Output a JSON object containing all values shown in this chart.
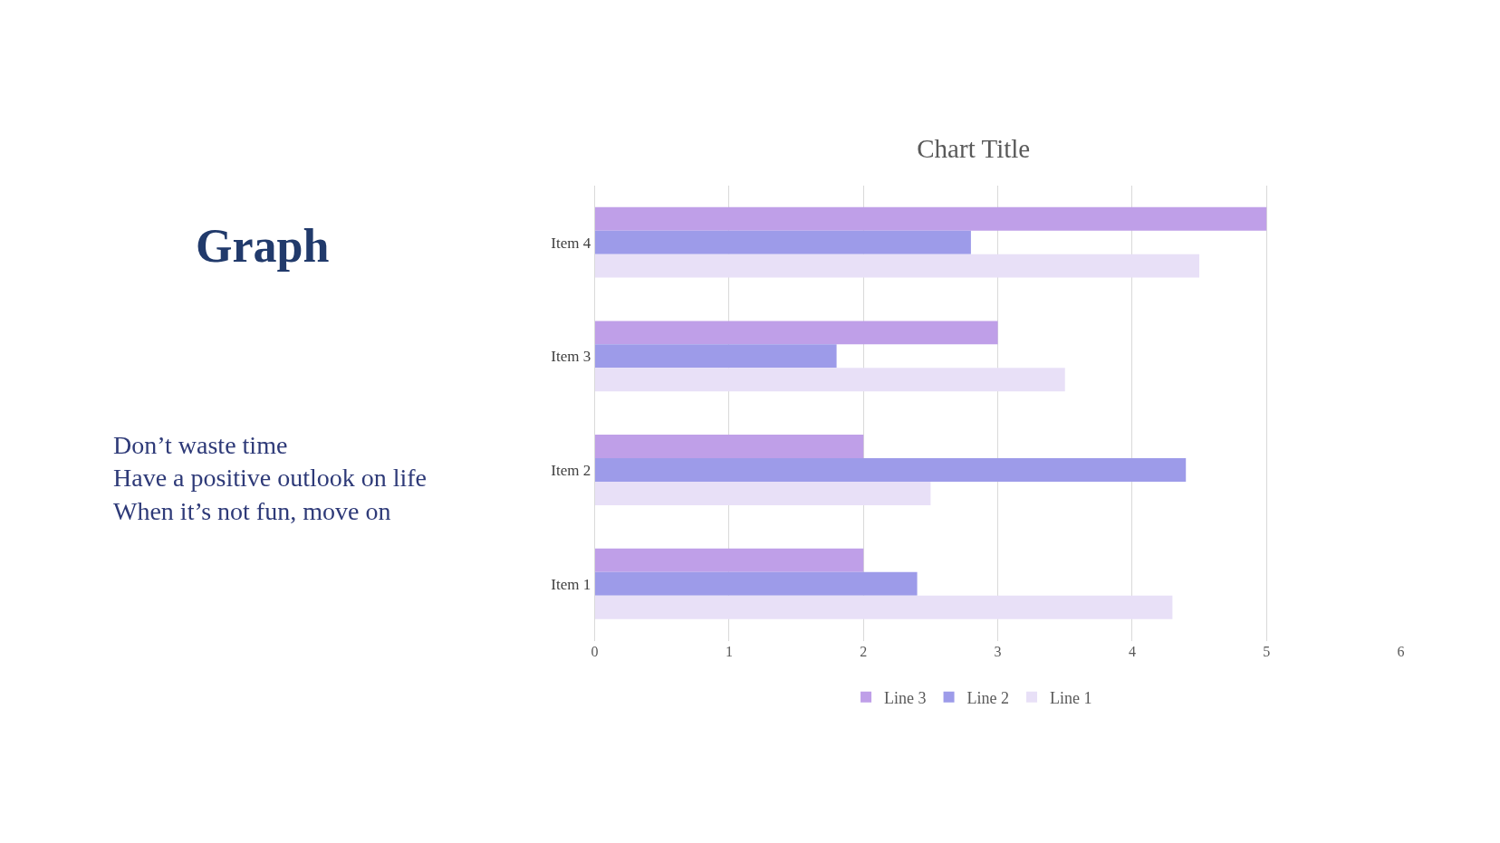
{
  "chart_data": {
    "type": "bar",
    "orientation": "horizontal",
    "title": "Chart Title",
    "categories": [
      "Item 4",
      "Item 3",
      "Item 2",
      "Item 1"
    ],
    "series": [
      {
        "name": "Line 3",
        "color": "#bf9fe8",
        "values": [
          5,
          3,
          2,
          2
        ]
      },
      {
        "name": "Line 2",
        "color": "#9d9be9",
        "values": [
          2.8,
          1.8,
          4.4,
          2.4
        ]
      },
      {
        "name": "Line 1",
        "color": "#e8e0f7",
        "values": [
          4.5,
          3.5,
          2.5,
          4.3
        ]
      }
    ],
    "xlim": [
      0,
      6
    ],
    "xticks": [
      0,
      1,
      2,
      3,
      4,
      5,
      6
    ],
    "grid": "x",
    "legend": "bottom",
    "annotations": [
      "Graph",
      "Don’t waste time\nHave a positive outlook on life\nWhen it’s not fun, move on"
    ]
  }
}
